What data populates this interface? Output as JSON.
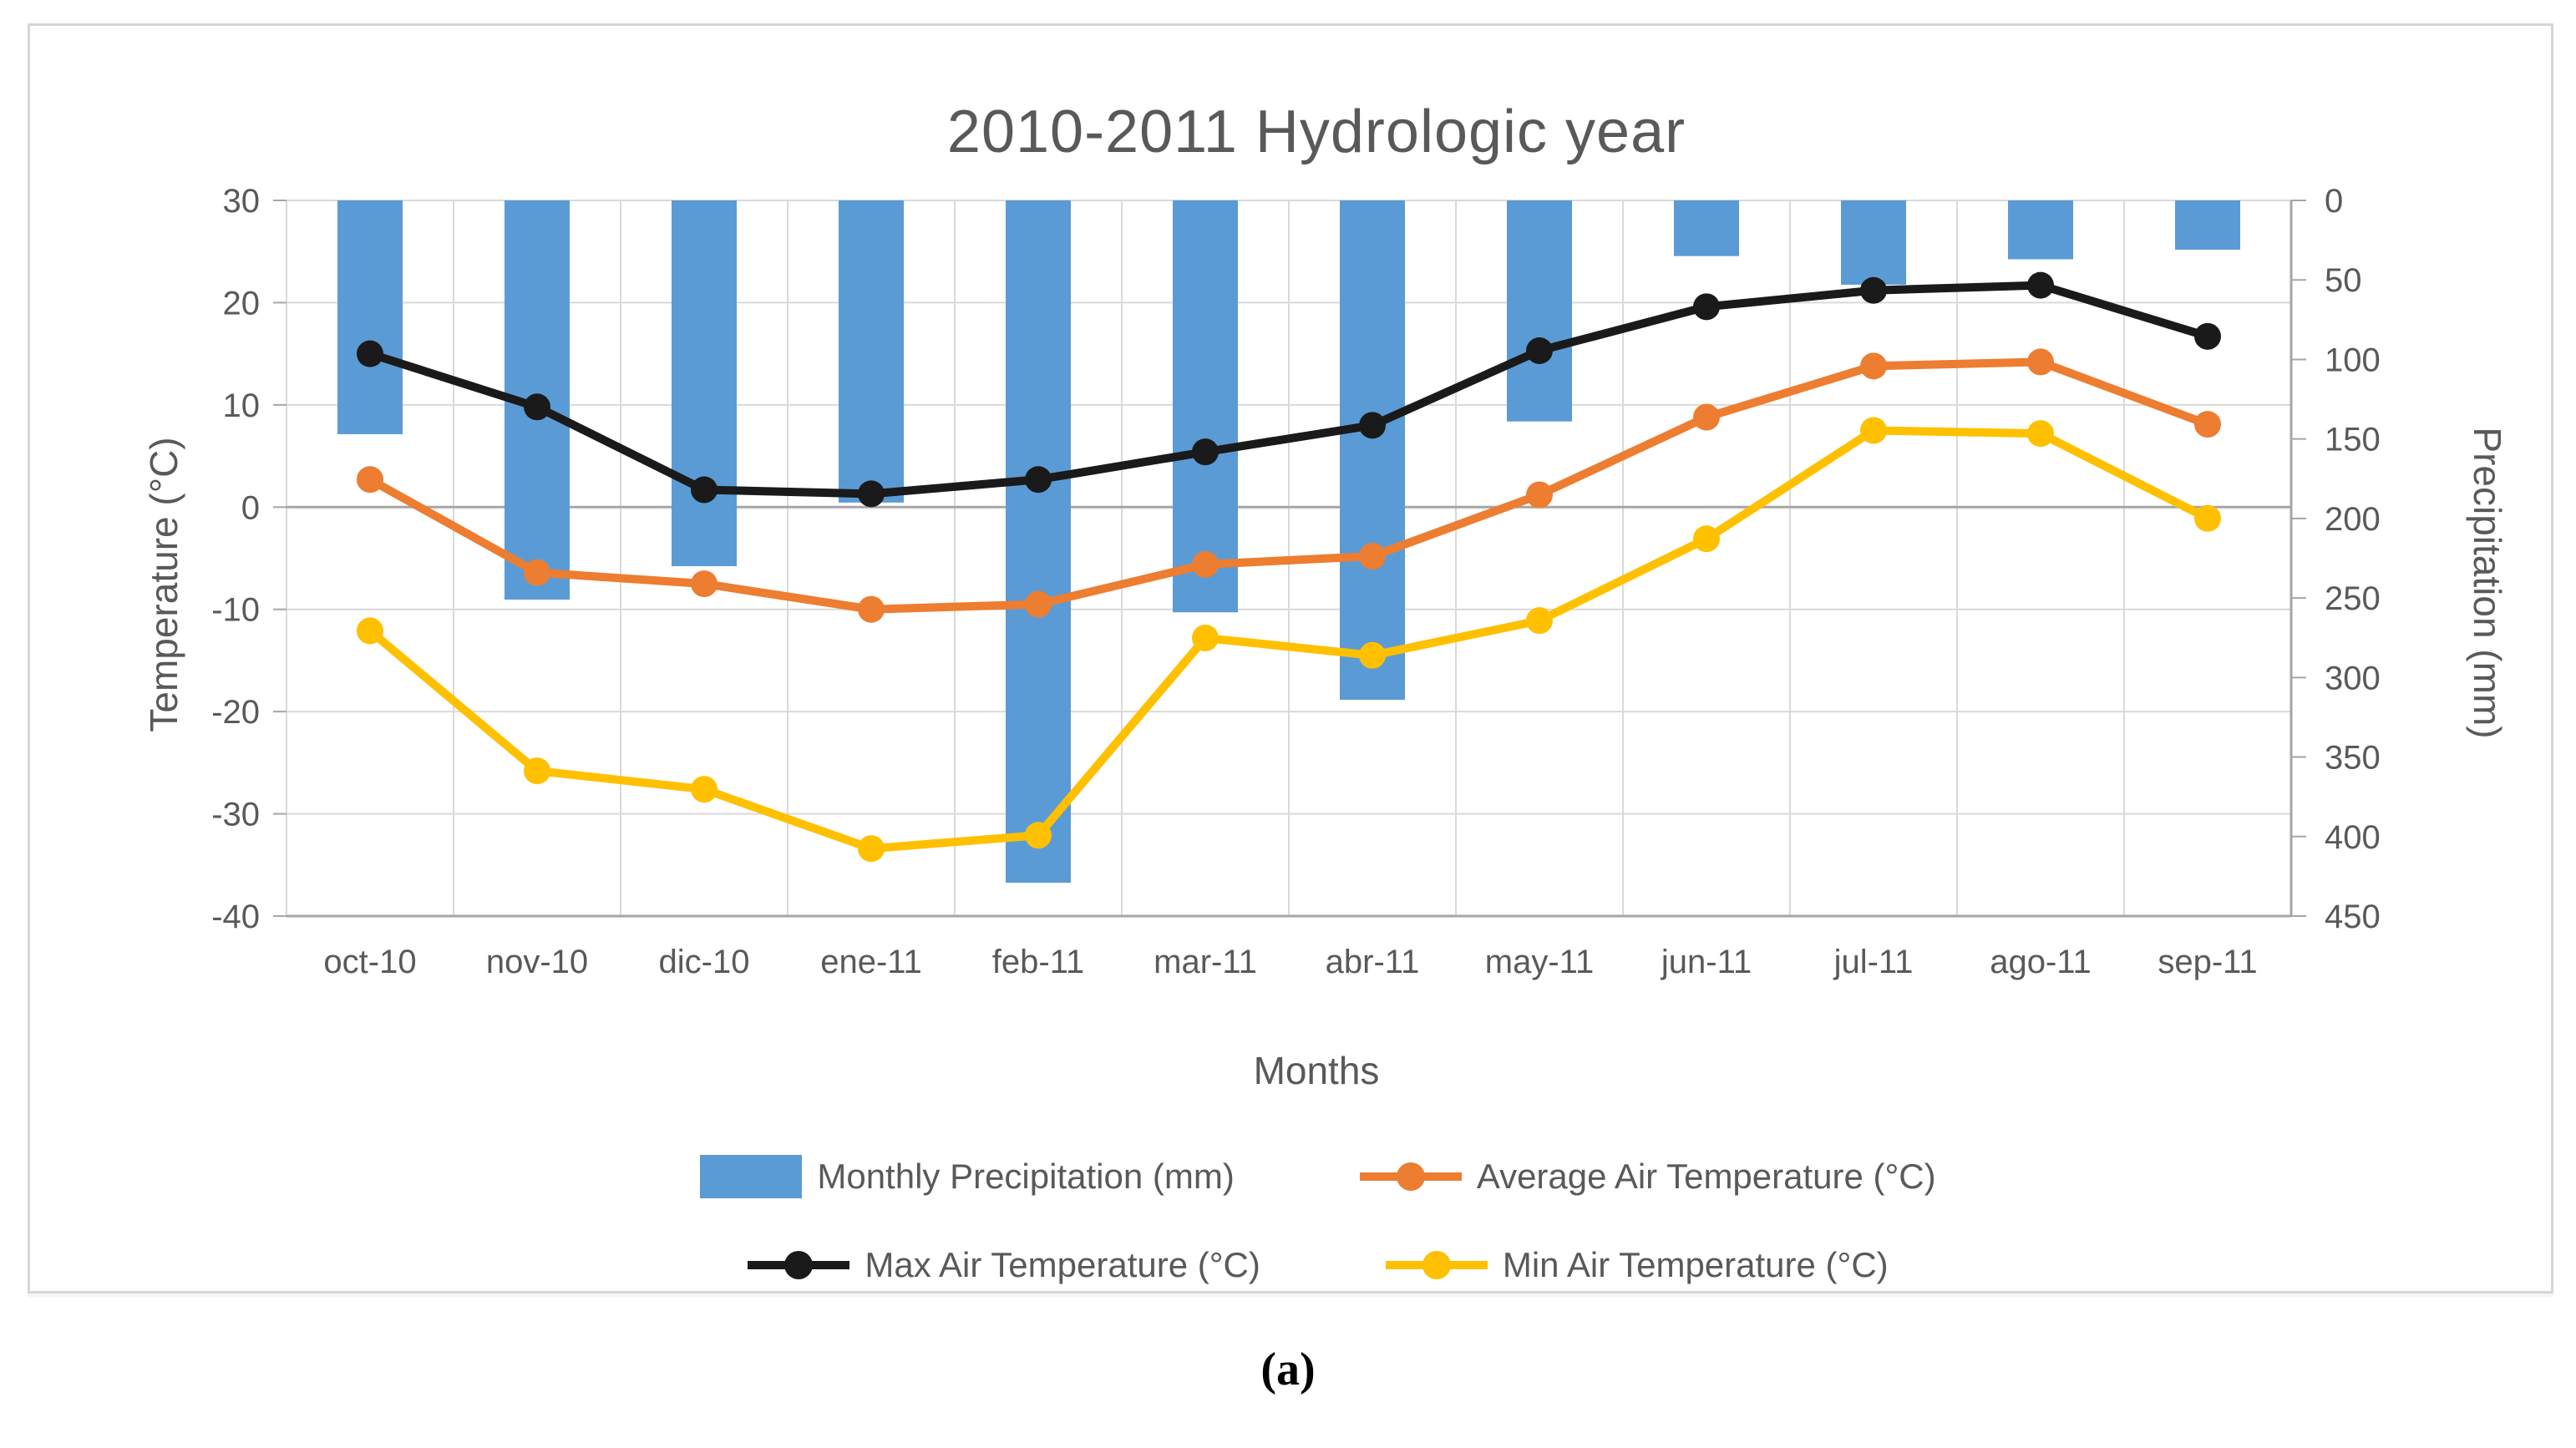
{
  "figure": {
    "caption": "(a)"
  },
  "chart_data": {
    "type": "combo-bar-line",
    "title": "2010-2011 Hydrologic year",
    "x_axis_title": "Months",
    "categories": [
      "oct-10",
      "nov-10",
      "dic-10",
      "ene-11",
      "feb-11",
      "mar-11",
      "abr-11",
      "may-11",
      "jun-11",
      "jul-11",
      "ago-11",
      "sep-11"
    ],
    "left_axis": {
      "title": "Temperature (°C)",
      "min": -40,
      "max": 30,
      "tick_step": 10,
      "ticks": [
        30,
        20,
        10,
        0,
        -10,
        -20,
        -30,
        -40
      ]
    },
    "right_axis": {
      "title": "Precipitation (mm)",
      "min": 0,
      "max": 450,
      "tick_step": 50,
      "inverted": true,
      "ticks": [
        0,
        50,
        100,
        150,
        200,
        250,
        300,
        350,
        400,
        450
      ]
    },
    "series": [
      {
        "name": "Monthly Precipitation (mm)",
        "type": "bar",
        "axis": "right",
        "color": "#5B9BD5",
        "values": [
          147,
          251,
          230,
          190,
          429,
          259,
          314,
          139,
          35,
          53,
          37,
          31
        ]
      },
      {
        "name": "Average Air Temperature (°C)",
        "type": "line",
        "axis": "left",
        "color": "#ED7D31",
        "values": [
          2.7,
          -6.4,
          -7.5,
          -10.0,
          -9.5,
          -5.6,
          -4.8,
          1.2,
          8.8,
          13.8,
          14.2,
          8.1
        ]
      },
      {
        "name": "Max Air Temperature (°C)",
        "type": "line",
        "axis": "left",
        "color": "#1A1A1A",
        "values": [
          15.0,
          9.8,
          1.7,
          1.3,
          2.7,
          5.4,
          8.0,
          15.3,
          19.6,
          21.2,
          21.7,
          16.7
        ]
      },
      {
        "name": "Min Air Temperature (°C)",
        "type": "line",
        "axis": "left",
        "color": "#FFC000",
        "values": [
          -12.1,
          -25.8,
          -27.6,
          -33.4,
          -32.1,
          -12.8,
          -14.5,
          -11.1,
          -3.1,
          7.5,
          7.2,
          -1.1
        ]
      }
    ],
    "grid": {
      "line_color": "#D9D9D9",
      "zero_line_color": "#A6A6A6",
      "axis_line_color": "#A6A6A6"
    },
    "legend_position": "bottom",
    "text_color": "#595959"
  }
}
